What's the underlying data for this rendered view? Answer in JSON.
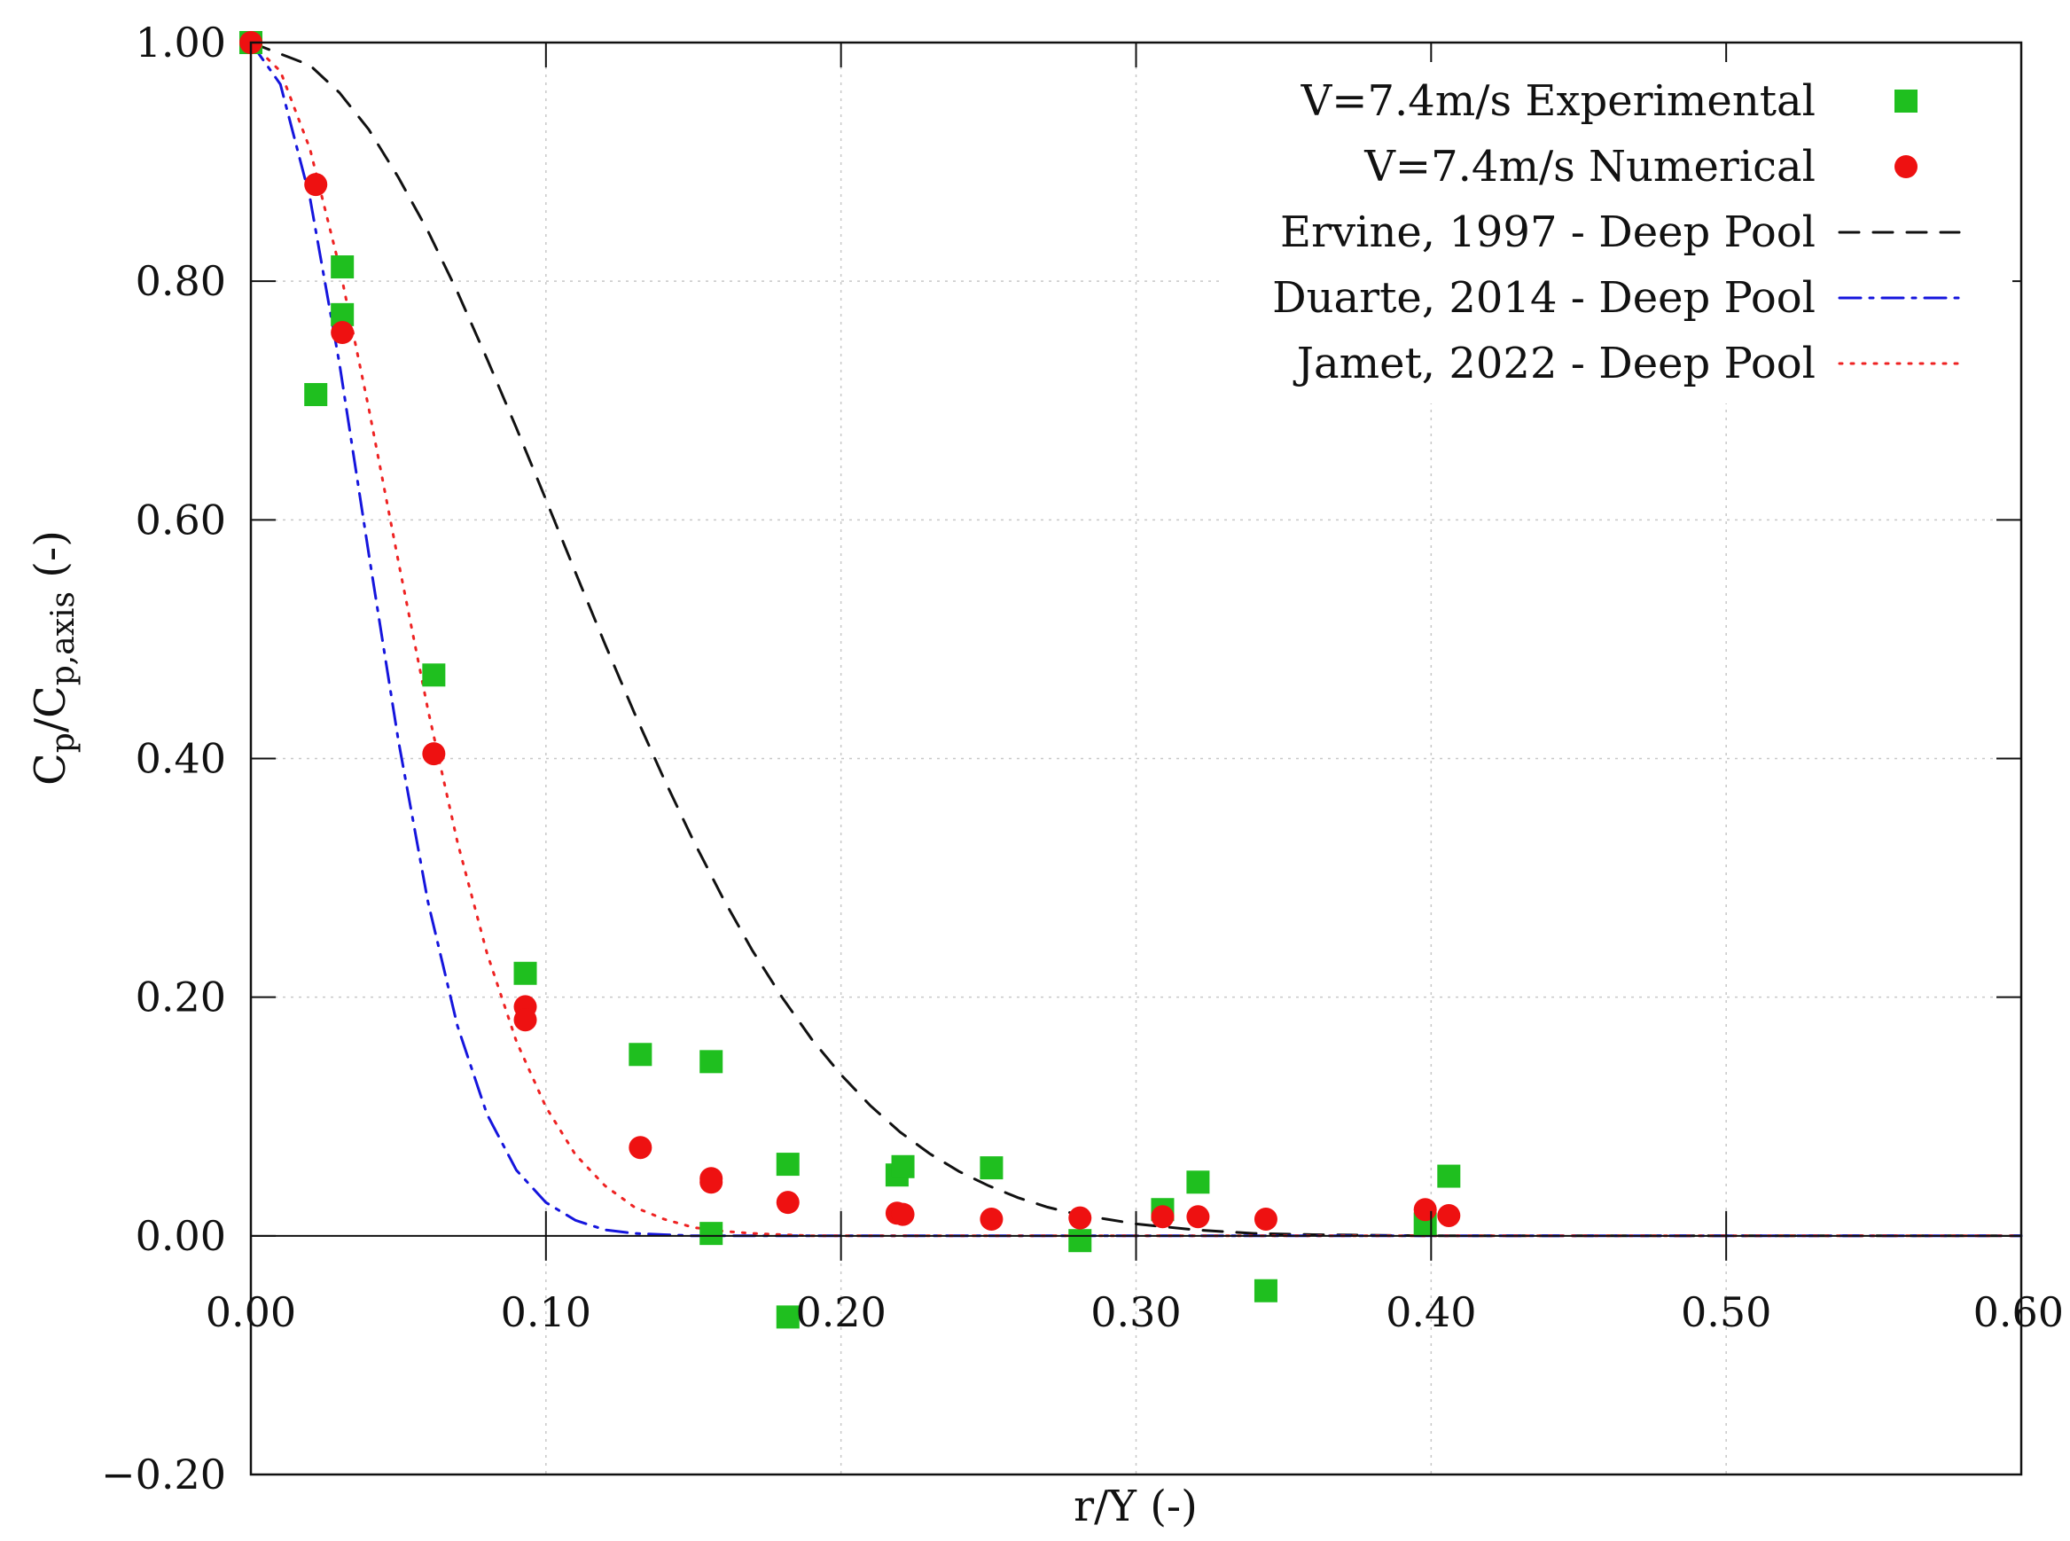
{
  "chart_data": {
    "type": "scatter",
    "xlabel": "r/Y (-)",
    "ylabel": {
      "main": "C",
      "sub1": "p",
      "mid": "/C",
      "sub2": "p,axis",
      "tail": " (-)"
    },
    "xlim": [
      0,
      0.6
    ],
    "ylim": [
      -0.2,
      1.0
    ],
    "xticks": [
      0.0,
      0.1,
      0.2,
      0.3,
      0.4,
      0.5,
      0.6
    ],
    "xtick_labels": [
      "0.00",
      "0.10",
      "0.20",
      "0.30",
      "0.40",
      "0.50",
      "0.60"
    ],
    "yticks": [
      -0.2,
      0.0,
      0.2,
      0.4,
      0.6,
      0.8,
      1.0
    ],
    "ytick_labels": [
      "−0.20",
      "0.00",
      "0.20",
      "0.40",
      "0.60",
      "0.80",
      "1.00"
    ],
    "grid": true,
    "legend_position": "top-right",
    "series": [
      {
        "name": "V=7.4m/s Experimental",
        "kind": "markers",
        "marker": "square",
        "color": "#1fbf1f",
        "x": [
          0.0,
          0.022,
          0.031,
          0.031,
          0.062,
          0.093,
          0.132,
          0.156,
          0.156,
          0.182,
          0.182,
          0.219,
          0.221,
          0.251,
          0.281,
          0.309,
          0.321,
          0.344,
          0.398,
          0.406
        ],
        "y": [
          1.0,
          0.705,
          0.812,
          0.772,
          0.47,
          0.22,
          0.152,
          0.146,
          0.002,
          0.06,
          -0.068,
          0.051,
          0.058,
          0.057,
          -0.004,
          0.022,
          0.045,
          -0.046,
          0.01,
          0.05
        ]
      },
      {
        "name": "V=7.4m/s Numerical",
        "kind": "markers",
        "marker": "circle",
        "color": "#ee1111",
        "x": [
          0.0,
          0.022,
          0.031,
          0.062,
          0.093,
          0.093,
          0.132,
          0.156,
          0.156,
          0.182,
          0.219,
          0.221,
          0.251,
          0.281,
          0.309,
          0.321,
          0.344,
          0.398,
          0.406
        ],
        "y": [
          1.0,
          0.881,
          0.757,
          0.404,
          0.192,
          0.181,
          0.074,
          0.048,
          0.045,
          0.028,
          0.019,
          0.018,
          0.014,
          0.015,
          0.016,
          0.016,
          0.014,
          0.022,
          0.017
        ]
      },
      {
        "name": "Ervine, 1997 - Deep Pool",
        "kind": "line",
        "dash": "dashed",
        "color": "#111111",
        "x": [
          0.0,
          0.02,
          0.03,
          0.04,
          0.05,
          0.06,
          0.07,
          0.08,
          0.09,
          0.1,
          0.11,
          0.12,
          0.13,
          0.14,
          0.15,
          0.16,
          0.17,
          0.18,
          0.19,
          0.2,
          0.21,
          0.22,
          0.23,
          0.24,
          0.25,
          0.26,
          0.27,
          0.28,
          0.29,
          0.3,
          0.32,
          0.34,
          0.36,
          0.4,
          0.5,
          0.6
        ],
        "y": [
          1.0,
          0.981,
          0.958,
          0.927,
          0.887,
          0.842,
          0.791,
          0.735,
          0.677,
          0.617,
          0.556,
          0.496,
          0.438,
          0.383,
          0.331,
          0.283,
          0.239,
          0.2,
          0.165,
          0.135,
          0.109,
          0.087,
          0.069,
          0.054,
          0.042,
          0.032,
          0.024,
          0.018,
          0.014,
          0.01,
          0.005,
          0.002,
          0.001,
          0.0,
          0.0,
          0.0
        ]
      },
      {
        "name": "Duarte, 2014 - Deep Pool",
        "kind": "line",
        "dash": "dash-dot",
        "color": "#1515dd",
        "x": [
          0.0,
          0.01,
          0.02,
          0.03,
          0.04,
          0.05,
          0.06,
          0.07,
          0.08,
          0.09,
          0.1,
          0.11,
          0.12,
          0.13,
          0.14,
          0.15,
          0.16,
          0.18,
          0.2,
          0.3,
          0.4,
          0.5,
          0.6
        ],
        "y": [
          1.0,
          0.965,
          0.87,
          0.731,
          0.571,
          0.415,
          0.28,
          0.176,
          0.102,
          0.055,
          0.028,
          0.013,
          0.005,
          0.002,
          0.001,
          0.0,
          0.0,
          0.0,
          0.0,
          0.0,
          0.0,
          0.0,
          0.0
        ]
      },
      {
        "name": "Jamet, 2022 - Deep Pool",
        "kind": "line",
        "dash": "dotted",
        "color": "#ee2222",
        "x": [
          0.0,
          0.01,
          0.02,
          0.03,
          0.04,
          0.05,
          0.06,
          0.07,
          0.08,
          0.09,
          0.1,
          0.11,
          0.12,
          0.13,
          0.14,
          0.15,
          0.16,
          0.17,
          0.18,
          0.19,
          0.2,
          0.22,
          0.3,
          0.4,
          0.5,
          0.6
        ],
        "y": [
          1.0,
          0.976,
          0.911,
          0.812,
          0.693,
          0.565,
          0.441,
          0.33,
          0.237,
          0.163,
          0.108,
          0.068,
          0.042,
          0.024,
          0.014,
          0.007,
          0.004,
          0.002,
          0.001,
          0.0,
          0.0,
          0.0,
          0.0,
          0.0,
          0.0,
          0.0
        ]
      }
    ]
  }
}
